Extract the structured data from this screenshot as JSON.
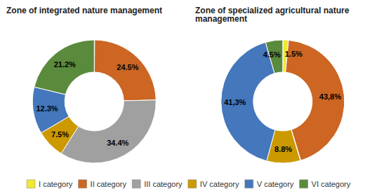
{
  "chart_data": [
    {
      "type": "pie",
      "title": "Zone of integrated nature management",
      "categories": [
        "I category",
        "II category",
        "III category",
        "IV category",
        "V category",
        "VI category"
      ],
      "values": [
        0.1,
        24.5,
        34.4,
        7.5,
        12.3,
        21.2
      ],
      "value_labels": [
        null,
        "24.5%",
        "34.4%",
        "7.5%",
        "12.3%",
        "21.2%"
      ],
      "colors": [
        "#ffffff",
        "#cc6622",
        "#a0a0a0",
        "#cc9900",
        "#4477bb",
        "#5a8a3c"
      ],
      "data_labels": true,
      "legend": "bottom"
    },
    {
      "type": "pie",
      "title": "Zone of specialized agricultural nature\nmanagement",
      "categories": [
        "I category",
        "II category",
        "III category",
        "IV category",
        "V category",
        "VI category"
      ],
      "values": [
        1.5,
        43.8,
        0.1,
        8.8,
        41.3,
        4.5
      ],
      "value_labels": [
        "1.5%",
        "43,8%",
        null,
        "8.8%",
        "41,3%",
        "4.5%"
      ],
      "colors": [
        "#f0e832",
        "#cc6622",
        "#ffffff",
        "#cc9900",
        "#4477bb",
        "#5a8a3c"
      ],
      "data_labels": true,
      "legend": "bottom"
    }
  ]
}
